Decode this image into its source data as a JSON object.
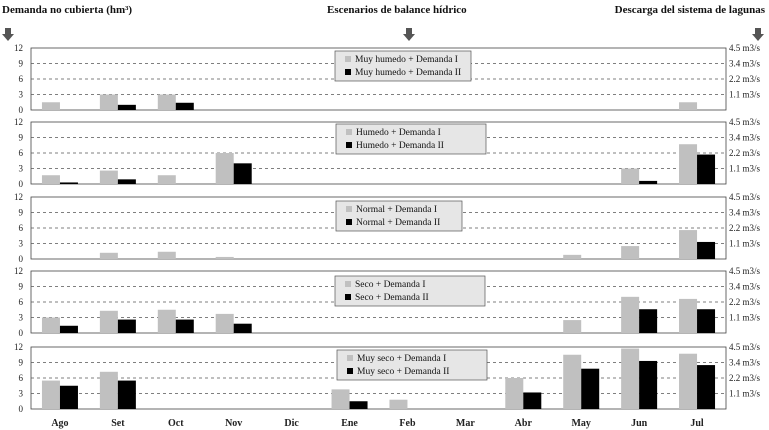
{
  "header": {
    "left": "Demanda no cubierta (hm³)",
    "center": "Escenarios de balance hídrico",
    "right": "Descarga del sistema de lagunas"
  },
  "colors": {
    "demanda_I": "#c0c0c0",
    "demanda_II": "#000000",
    "grid": "#555555"
  },
  "chart_data": {
    "type": "bar",
    "categories": [
      "Ago",
      "Set",
      "Oct",
      "Nov",
      "Dic",
      "Ene",
      "Feb",
      "Mar",
      "Abr",
      "May",
      "Jun",
      "Jul"
    ],
    "ylim": [
      0,
      12
    ],
    "y_ticks": [
      0,
      3,
      6,
      9,
      12
    ],
    "right_ticks": [
      "1.1 m3/s",
      "2.2 m3/s",
      "3.4 m3/s",
      "4.5 m3/s"
    ],
    "grid": "dashed horizontal",
    "panels": [
      {
        "series": [
          {
            "name": "Muy humedo + Demanda I",
            "values": [
              1.5,
              3.0,
              3.0,
              0,
              0,
              0,
              0,
              0,
              0,
              0,
              0,
              1.5
            ]
          },
          {
            "name": "Muy humedo + Demanda II",
            "values": [
              0,
              1.0,
              1.4,
              0,
              0,
              0,
              0,
              0,
              0,
              0,
              0,
              0
            ]
          }
        ]
      },
      {
        "series": [
          {
            "name": "Humedo + Demanda I",
            "values": [
              1.7,
              2.6,
              1.7,
              6.0,
              0,
              0,
              0,
              0,
              0,
              0,
              3.0,
              7.7
            ]
          },
          {
            "name": "Humedo + Demanda II",
            "values": [
              0.3,
              0.9,
              0,
              4.0,
              0,
              0,
              0,
              0,
              0,
              0,
              0.6,
              5.7
            ]
          }
        ]
      },
      {
        "series": [
          {
            "name": "Normal + Demanda I",
            "values": [
              0,
              1.2,
              1.4,
              0.4,
              0,
              0,
              0,
              0,
              0,
              0.8,
              2.5,
              5.6
            ]
          },
          {
            "name": "Normal + Demanda II",
            "values": [
              0,
              0,
              0,
              0,
              0,
              0,
              0,
              0,
              0,
              0,
              0,
              3.3
            ]
          }
        ]
      },
      {
        "series": [
          {
            "name": "Seco + Demanda I",
            "values": [
              3.0,
              4.3,
              4.5,
              3.7,
              0,
              0,
              0,
              0,
              0,
              2.5,
              7.0,
              6.6
            ]
          },
          {
            "name": "Seco + Demanda II",
            "values": [
              1.4,
              2.6,
              2.6,
              1.8,
              0,
              0,
              0,
              0,
              0,
              0,
              4.6,
              4.6
            ]
          }
        ]
      },
      {
        "series": [
          {
            "name": "Muy seco + Demanda I",
            "values": [
              5.5,
              7.2,
              0,
              0,
              0,
              3.8,
              1.8,
              0,
              6.0,
              10.5,
              11.7,
              10.7
            ]
          },
          {
            "name": "Muy seco + Demanda II",
            "values": [
              4.5,
              5.5,
              0,
              0,
              0,
              1.5,
              0,
              0,
              3.2,
              7.8,
              9.3,
              8.5
            ]
          }
        ]
      }
    ]
  }
}
